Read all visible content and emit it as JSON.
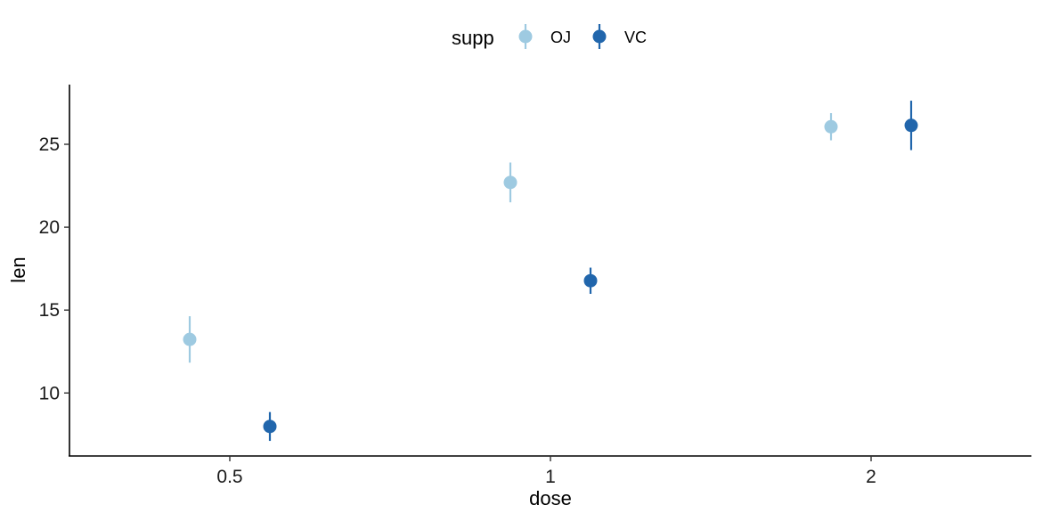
{
  "chart_data": {
    "type": "scatter",
    "subtype": "dot-with-error-bars (position dodge)",
    "xlabel": "dose",
    "ylabel": "len",
    "categories": [
      "0.5",
      "1",
      "2"
    ],
    "ylim": [
      6.2,
      28.6
    ],
    "yticks": [
      10,
      15,
      20,
      25
    ],
    "grid": false,
    "legend": {
      "title": "supp",
      "placement": "top"
    },
    "series": [
      {
        "name": "OJ",
        "color": "#9ecae1",
        "values": [
          13.23,
          22.7,
          26.06
        ],
        "lower": [
          11.83,
          21.5,
          25.24
        ],
        "upper": [
          14.63,
          23.9,
          26.88
        ]
      },
      {
        "name": "VC",
        "color": "#2166ac",
        "values": [
          7.98,
          16.77,
          26.14
        ],
        "lower": [
          7.11,
          15.98,
          24.65
        ],
        "upper": [
          8.85,
          17.56,
          27.63
        ]
      }
    ]
  }
}
